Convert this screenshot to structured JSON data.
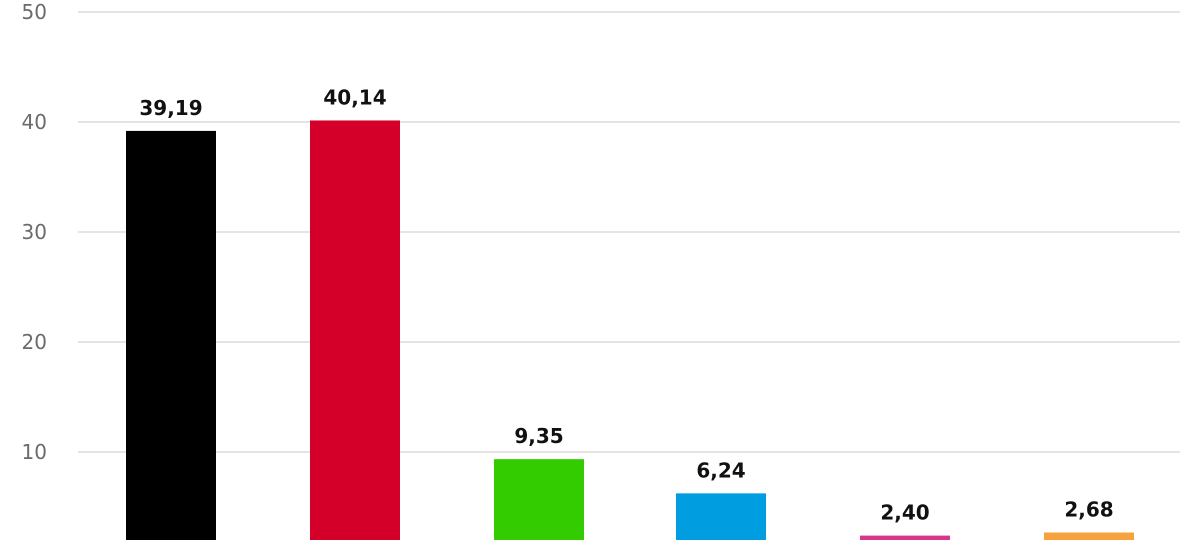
{
  "chart_data": {
    "type": "bar",
    "categories": [
      "",
      "",
      "",
      "",
      "",
      ""
    ],
    "values": [
      39.19,
      40.14,
      9.35,
      6.24,
      2.4,
      2.68
    ],
    "value_labels": [
      "39,19",
      "40,14",
      "9,35",
      "6,24",
      "2,40",
      "2,68"
    ],
    "colors": [
      "#000000",
      "#d4002a",
      "#33cc00",
      "#009ee0",
      "#d6378c",
      "#f7a23c"
    ],
    "y_ticks": [
      10,
      20,
      30,
      40,
      50
    ],
    "y_tick_labels": [
      "10",
      "20",
      "30",
      "40",
      "50"
    ],
    "ylim": [
      0,
      50
    ],
    "grid": true,
    "title": "",
    "xlabel": "",
    "ylabel": ""
  }
}
